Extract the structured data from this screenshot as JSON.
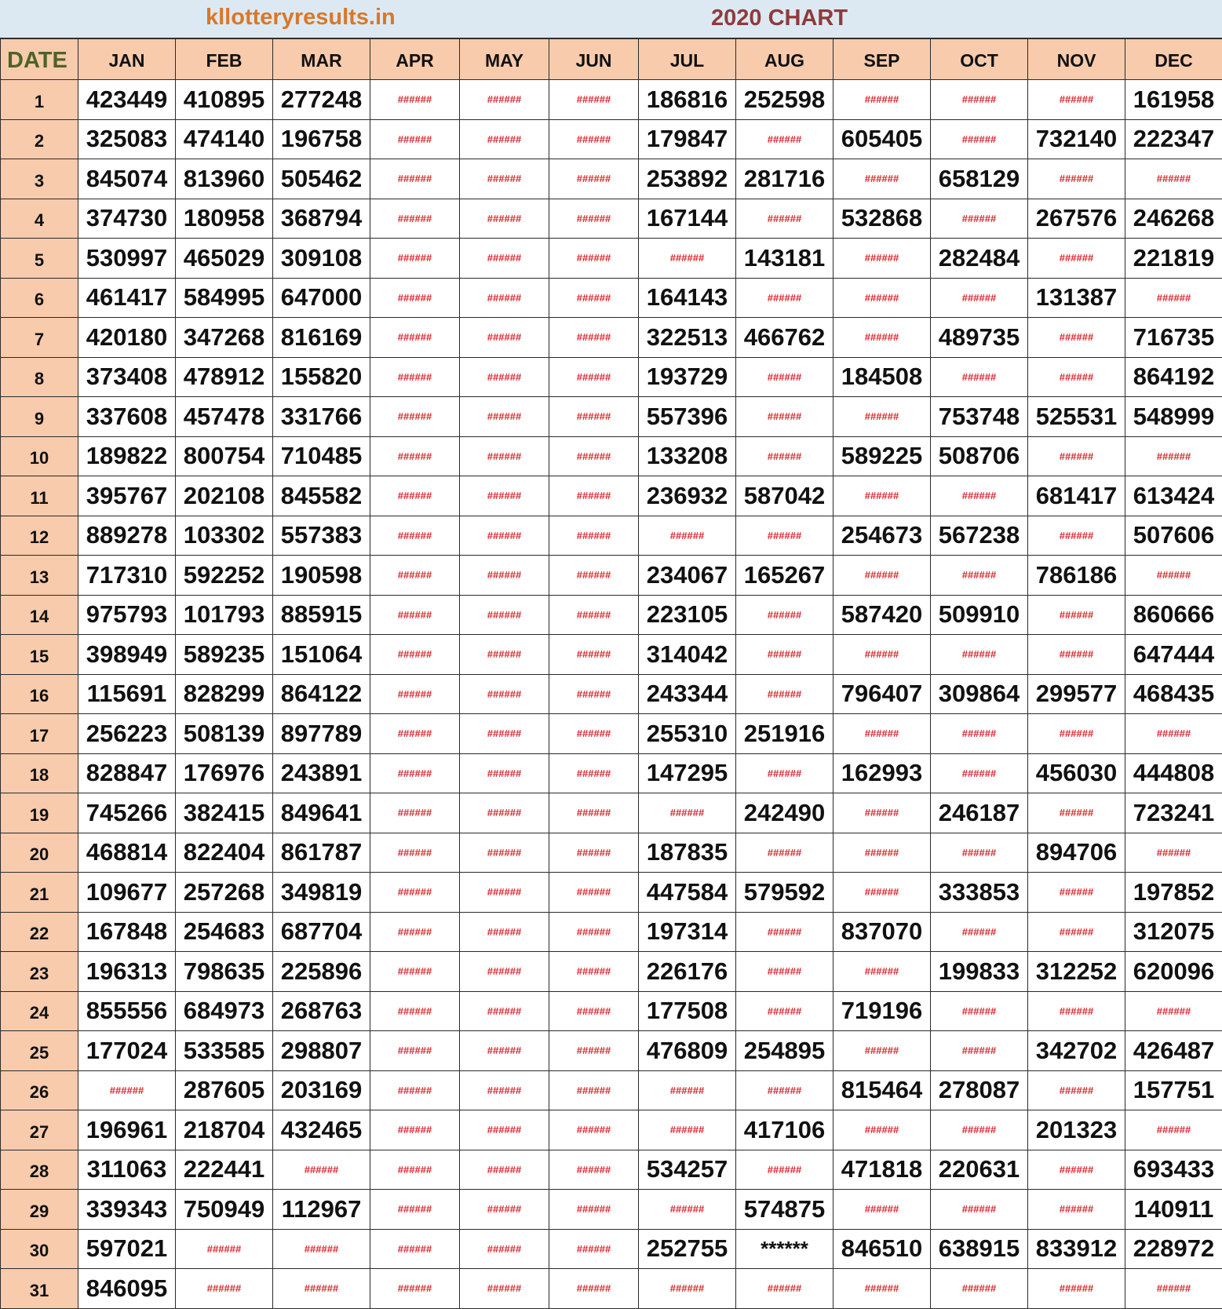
{
  "header": {
    "site": "kllotteryresults.in",
    "title": "2020 CHART"
  },
  "columns": [
    "DATE",
    "JAN",
    "FEB",
    "MAR",
    "APR",
    "MAY",
    "JUN",
    "JUL",
    "AUG",
    "SEP",
    "OCT",
    "NOV",
    "DEC"
  ],
  "colors": {
    "title_bg": "#dde9f2",
    "site": "#d9782a",
    "title": "#8e3b3b",
    "header_bg": "#f8cbad",
    "date_label": "#4f6228",
    "no_draw": "#d7262c"
  },
  "rows": [
    [
      "1",
      "423449",
      "410895",
      "277248",
      "######",
      "######",
      "######",
      "186816",
      "252598",
      "######",
      "######",
      "######",
      "161958"
    ],
    [
      "2",
      "325083",
      "474140",
      "196758",
      "######",
      "######",
      "######",
      "179847",
      "######",
      "605405",
      "######",
      "732140",
      "222347"
    ],
    [
      "3",
      "845074",
      "813960",
      "505462",
      "######",
      "######",
      "######",
      "253892",
      "281716",
      "######",
      "658129",
      "######",
      "######"
    ],
    [
      "4",
      "374730",
      "180958",
      "368794",
      "######",
      "######",
      "######",
      "167144",
      "######",
      "532868",
      "######",
      "267576",
      "246268"
    ],
    [
      "5",
      "530997",
      "465029",
      "309108",
      "######",
      "######",
      "######",
      "######",
      "143181",
      "######",
      "282484",
      "######",
      "221819"
    ],
    [
      "6",
      "461417",
      "584995",
      "647000",
      "######",
      "######",
      "######",
      "164143",
      "######",
      "######",
      "######",
      "131387",
      "######"
    ],
    [
      "7",
      "420180",
      "347268",
      "816169",
      "######",
      "######",
      "######",
      "322513",
      "466762",
      "######",
      "489735",
      "######",
      "716735"
    ],
    [
      "8",
      "373408",
      "478912",
      "155820",
      "######",
      "######",
      "######",
      "193729",
      "######",
      "184508",
      "######",
      "######",
      "864192"
    ],
    [
      "9",
      "337608",
      "457478",
      "331766",
      "######",
      "######",
      "######",
      "557396",
      "######",
      "######",
      "753748",
      "525531",
      "548999"
    ],
    [
      "10",
      "189822",
      "800754",
      "710485",
      "######",
      "######",
      "######",
      "133208",
      "######",
      "589225",
      "508706",
      "######",
      "######"
    ],
    [
      "11",
      "395767",
      "202108",
      "845582",
      "######",
      "######",
      "######",
      "236932",
      "587042",
      "######",
      "######",
      "681417",
      "613424"
    ],
    [
      "12",
      "889278",
      "103302",
      "557383",
      "######",
      "######",
      "######",
      "######",
      "######",
      "254673",
      "567238",
      "######",
      "507606"
    ],
    [
      "13",
      "717310",
      "592252",
      "190598",
      "######",
      "######",
      "######",
      "234067",
      "165267",
      "######",
      "######",
      "786186",
      "######"
    ],
    [
      "14",
      "975793",
      "101793",
      "885915",
      "######",
      "######",
      "######",
      "223105",
      "######",
      "587420",
      "509910",
      "######",
      "860666"
    ],
    [
      "15",
      "398949",
      "589235",
      "151064",
      "######",
      "######",
      "######",
      "314042",
      "######",
      "######",
      "######",
      "######",
      "647444"
    ],
    [
      "16",
      "115691",
      "828299",
      "864122",
      "######",
      "######",
      "######",
      "243344",
      "######",
      "796407",
      "309864",
      "299577",
      "468435"
    ],
    [
      "17",
      "256223",
      "508139",
      "897789",
      "######",
      "######",
      "######",
      "255310",
      "251916",
      "######",
      "######",
      "######",
      "######"
    ],
    [
      "18",
      "828847",
      "176976",
      "243891",
      "######",
      "######",
      "######",
      "147295",
      "######",
      "162993",
      "######",
      "456030",
      "444808"
    ],
    [
      "19",
      "745266",
      "382415",
      "849641",
      "######",
      "######",
      "######",
      "######",
      "242490",
      "######",
      "246187",
      "######",
      "723241"
    ],
    [
      "20",
      "468814",
      "822404",
      "861787",
      "######",
      "######",
      "######",
      "187835",
      "######",
      "######",
      "######",
      "894706",
      "######"
    ],
    [
      "21",
      "109677",
      "257268",
      "349819",
      "######",
      "######",
      "######",
      "447584",
      "579592",
      "######",
      "333853",
      "######",
      "197852"
    ],
    [
      "22",
      "167848",
      "254683",
      "687704",
      "######",
      "######",
      "######",
      "197314",
      "######",
      "837070",
      "######",
      "######",
      "312075"
    ],
    [
      "23",
      "196313",
      "798635",
      "225896",
      "######",
      "######",
      "######",
      "226176",
      "######",
      "######",
      "199833",
      "312252",
      "620096"
    ],
    [
      "24",
      "855556",
      "684973",
      "268763",
      "######",
      "######",
      "######",
      "177508",
      "######",
      "719196",
      "######",
      "######",
      "######"
    ],
    [
      "25",
      "177024",
      "533585",
      "298807",
      "######",
      "######",
      "######",
      "476809",
      "254895",
      "######",
      "######",
      "342702",
      "426487"
    ],
    [
      "26",
      "######",
      "287605",
      "203169",
      "######",
      "######",
      "######",
      "######",
      "######",
      "815464",
      "278087",
      "######",
      "157751"
    ],
    [
      "27",
      "196961",
      "218704",
      "432465",
      "######",
      "######",
      "######",
      "######",
      "417106",
      "######",
      "######",
      "201323",
      "######"
    ],
    [
      "28",
      "311063",
      "222441",
      "######",
      "######",
      "######",
      "######",
      "534257",
      "######",
      "471818",
      "220631",
      "######",
      "693433"
    ],
    [
      "29",
      "339343",
      "750949",
      "112967",
      "######",
      "######",
      "######",
      "######",
      "574875",
      "######",
      "######",
      "######",
      "140911"
    ],
    [
      "30",
      "597021",
      "######",
      "######",
      "######",
      "######",
      "######",
      "252755",
      "******",
      "846510",
      "638915",
      "833912",
      "228972"
    ],
    [
      "31",
      "846095",
      "######",
      "######",
      "######",
      "######",
      "######",
      "######",
      "######",
      "######",
      "######",
      "######",
      "######"
    ]
  ]
}
